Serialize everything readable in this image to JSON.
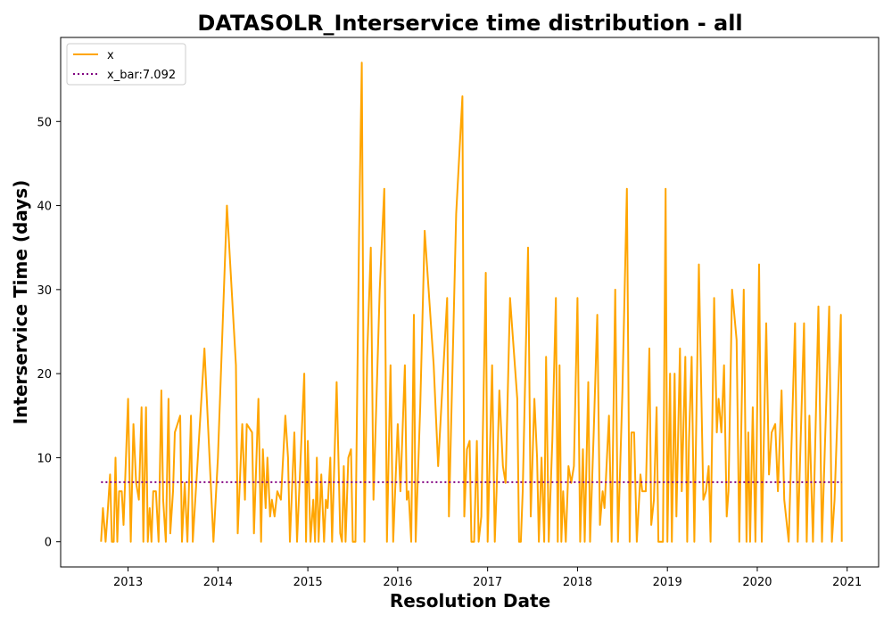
{
  "chart_data": {
    "type": "line",
    "title": "DATASOLR_Interservice time distribution - all",
    "xlabel": "Resolution Date",
    "ylabel": "Interservice Time (days)",
    "xlim": [
      2012.25,
      2021.35
    ],
    "ylim": [
      -3,
      60
    ],
    "xticks": [
      2013,
      2014,
      2015,
      2016,
      2017,
      2018,
      2019,
      2020,
      2021
    ],
    "yticks": [
      0,
      10,
      20,
      30,
      40,
      50
    ],
    "grid": false,
    "legend_position": "top-left",
    "colors": {
      "series": "#ffa500",
      "mean": "#800080"
    },
    "series": [
      {
        "name": "x",
        "style": "solid",
        "points": [
          [
            2012.7,
            0
          ],
          [
            2012.72,
            4
          ],
          [
            2012.75,
            0
          ],
          [
            2012.77,
            3
          ],
          [
            2012.8,
            8
          ],
          [
            2012.82,
            0
          ],
          [
            2012.84,
            0
          ],
          [
            2012.86,
            10
          ],
          [
            2012.88,
            0
          ],
          [
            2012.9,
            6
          ],
          [
            2012.93,
            6
          ],
          [
            2012.95,
            2
          ],
          [
            2013.0,
            17
          ],
          [
            2013.03,
            0
          ],
          [
            2013.06,
            14
          ],
          [
            2013.09,
            7
          ],
          [
            2013.12,
            5
          ],
          [
            2013.15,
            16
          ],
          [
            2013.17,
            0
          ],
          [
            2013.2,
            16
          ],
          [
            2013.22,
            0
          ],
          [
            2013.24,
            4
          ],
          [
            2013.26,
            0
          ],
          [
            2013.28,
            6
          ],
          [
            2013.31,
            6
          ],
          [
            2013.34,
            0
          ],
          [
            2013.37,
            18
          ],
          [
            2013.39,
            5
          ],
          [
            2013.42,
            0
          ],
          [
            2013.45,
            17
          ],
          [
            2013.47,
            1
          ],
          [
            2013.5,
            6
          ],
          [
            2013.52,
            13
          ],
          [
            2013.55,
            14
          ],
          [
            2013.58,
            15
          ],
          [
            2013.6,
            0
          ],
          [
            2013.63,
            7
          ],
          [
            2013.66,
            0
          ],
          [
            2013.7,
            15
          ],
          [
            2013.72,
            0
          ],
          [
            2013.85,
            23
          ],
          [
            2013.95,
            0
          ],
          [
            2014.0,
            10
          ],
          [
            2014.1,
            40
          ],
          [
            2014.2,
            21
          ],
          [
            2014.22,
            1
          ],
          [
            2014.27,
            14
          ],
          [
            2014.3,
            5
          ],
          [
            2014.32,
            14
          ],
          [
            2014.38,
            13
          ],
          [
            2014.4,
            1
          ],
          [
            2014.45,
            17
          ],
          [
            2014.48,
            0
          ],
          [
            2014.5,
            11
          ],
          [
            2014.53,
            4
          ],
          [
            2014.55,
            10
          ],
          [
            2014.58,
            3
          ],
          [
            2014.6,
            5
          ],
          [
            2014.63,
            3
          ],
          [
            2014.66,
            6
          ],
          [
            2014.7,
            5
          ],
          [
            2014.75,
            15
          ],
          [
            2014.78,
            10
          ],
          [
            2014.8,
            0
          ],
          [
            2014.85,
            13
          ],
          [
            2014.88,
            0
          ],
          [
            2014.96,
            20
          ],
          [
            2014.98,
            0
          ],
          [
            2015.0,
            12
          ],
          [
            2015.03,
            0
          ],
          [
            2015.06,
            5
          ],
          [
            2015.08,
            0
          ],
          [
            2015.1,
            10
          ],
          [
            2015.12,
            0
          ],
          [
            2015.15,
            8
          ],
          [
            2015.18,
            0
          ],
          [
            2015.2,
            5
          ],
          [
            2015.22,
            4
          ],
          [
            2015.25,
            10
          ],
          [
            2015.27,
            0
          ],
          [
            2015.32,
            19
          ],
          [
            2015.36,
            1
          ],
          [
            2015.38,
            0
          ],
          [
            2015.4,
            9
          ],
          [
            2015.42,
            0
          ],
          [
            2015.45,
            10
          ],
          [
            2015.48,
            11
          ],
          [
            2015.5,
            0
          ],
          [
            2015.53,
            0
          ],
          [
            2015.57,
            37
          ],
          [
            2015.6,
            57
          ],
          [
            2015.63,
            0
          ],
          [
            2015.66,
            22
          ],
          [
            2015.7,
            35
          ],
          [
            2015.73,
            5
          ],
          [
            2015.8,
            30
          ],
          [
            2015.85,
            42
          ],
          [
            2015.88,
            0
          ],
          [
            2015.92,
            21
          ],
          [
            2015.95,
            0
          ],
          [
            2016.0,
            14
          ],
          [
            2016.03,
            6
          ],
          [
            2016.08,
            21
          ],
          [
            2016.1,
            5
          ],
          [
            2016.12,
            6
          ],
          [
            2016.15,
            0
          ],
          [
            2016.18,
            27
          ],
          [
            2016.2,
            0
          ],
          [
            2016.25,
            16
          ],
          [
            2016.3,
            37
          ],
          [
            2016.4,
            21
          ],
          [
            2016.45,
            9
          ],
          [
            2016.55,
            29
          ],
          [
            2016.57,
            3
          ],
          [
            2016.65,
            39
          ],
          [
            2016.72,
            53
          ],
          [
            2016.74,
            3
          ],
          [
            2016.77,
            11
          ],
          [
            2016.8,
            12
          ],
          [
            2016.82,
            0
          ],
          [
            2016.85,
            0
          ],
          [
            2016.88,
            12
          ],
          [
            2016.9,
            0
          ],
          [
            2016.93,
            3
          ],
          [
            2016.98,
            32
          ],
          [
            2017.0,
            0
          ],
          [
            2017.05,
            21
          ],
          [
            2017.08,
            0
          ],
          [
            2017.1,
            6
          ],
          [
            2017.13,
            18
          ],
          [
            2017.17,
            9
          ],
          [
            2017.2,
            7
          ],
          [
            2017.25,
            29
          ],
          [
            2017.33,
            17
          ],
          [
            2017.35,
            0
          ],
          [
            2017.37,
            0
          ],
          [
            2017.39,
            6
          ],
          [
            2017.45,
            35
          ],
          [
            2017.48,
            3
          ],
          [
            2017.52,
            17
          ],
          [
            2017.55,
            10
          ],
          [
            2017.57,
            0
          ],
          [
            2017.6,
            10
          ],
          [
            2017.63,
            0
          ],
          [
            2017.65,
            22
          ],
          [
            2017.68,
            0
          ],
          [
            2017.72,
            12
          ],
          [
            2017.76,
            29
          ],
          [
            2017.78,
            0
          ],
          [
            2017.8,
            21
          ],
          [
            2017.82,
            0
          ],
          [
            2017.84,
            6
          ],
          [
            2017.87,
            0
          ],
          [
            2017.9,
            9
          ],
          [
            2017.93,
            7
          ],
          [
            2017.96,
            9
          ],
          [
            2018.0,
            29
          ],
          [
            2018.03,
            0
          ],
          [
            2018.06,
            11
          ],
          [
            2018.08,
            0
          ],
          [
            2018.12,
            19
          ],
          [
            2018.14,
            0
          ],
          [
            2018.18,
            13
          ],
          [
            2018.22,
            27
          ],
          [
            2018.25,
            2
          ],
          [
            2018.28,
            6
          ],
          [
            2018.3,
            4
          ],
          [
            2018.35,
            15
          ],
          [
            2018.38,
            0
          ],
          [
            2018.42,
            30
          ],
          [
            2018.45,
            0
          ],
          [
            2018.5,
            18
          ],
          [
            2018.55,
            42
          ],
          [
            2018.58,
            0
          ],
          [
            2018.6,
            13
          ],
          [
            2018.63,
            13
          ],
          [
            2018.66,
            0
          ],
          [
            2018.7,
            8
          ],
          [
            2018.72,
            6
          ],
          [
            2018.76,
            6
          ],
          [
            2018.8,
            23
          ],
          [
            2018.82,
            2
          ],
          [
            2018.85,
            5
          ],
          [
            2018.88,
            16
          ],
          [
            2018.9,
            0
          ],
          [
            2018.95,
            0
          ],
          [
            2018.98,
            42
          ],
          [
            2019.0,
            0
          ],
          [
            2019.03,
            20
          ],
          [
            2019.05,
            0
          ],
          [
            2019.08,
            20
          ],
          [
            2019.1,
            3
          ],
          [
            2019.14,
            23
          ],
          [
            2019.16,
            6
          ],
          [
            2019.2,
            22
          ],
          [
            2019.22,
            0
          ],
          [
            2019.24,
            12
          ],
          [
            2019.27,
            22
          ],
          [
            2019.3,
            0
          ],
          [
            2019.35,
            33
          ],
          [
            2019.4,
            5
          ],
          [
            2019.43,
            6
          ],
          [
            2019.46,
            9
          ],
          [
            2019.48,
            0
          ],
          [
            2019.52,
            29
          ],
          [
            2019.55,
            13
          ],
          [
            2019.57,
            17
          ],
          [
            2019.6,
            13
          ],
          [
            2019.63,
            21
          ],
          [
            2019.66,
            3
          ],
          [
            2019.68,
            6
          ],
          [
            2019.72,
            30
          ],
          [
            2019.77,
            24
          ],
          [
            2019.8,
            0
          ],
          [
            2019.85,
            30
          ],
          [
            2019.88,
            0
          ],
          [
            2019.9,
            13
          ],
          [
            2019.92,
            0
          ],
          [
            2019.95,
            16
          ],
          [
            2019.98,
            0
          ],
          [
            2020.02,
            33
          ],
          [
            2020.05,
            0
          ],
          [
            2020.1,
            26
          ],
          [
            2020.13,
            8
          ],
          [
            2020.16,
            13
          ],
          [
            2020.2,
            14
          ],
          [
            2020.23,
            6
          ],
          [
            2020.27,
            18
          ],
          [
            2020.3,
            5
          ],
          [
            2020.35,
            0
          ],
          [
            2020.42,
            26
          ],
          [
            2020.45,
            0
          ],
          [
            2020.52,
            26
          ],
          [
            2020.55,
            0
          ],
          [
            2020.58,
            15
          ],
          [
            2020.62,
            0
          ],
          [
            2020.68,
            28
          ],
          [
            2020.72,
            0
          ],
          [
            2020.8,
            28
          ],
          [
            2020.83,
            0
          ],
          [
            2020.86,
            5
          ],
          [
            2020.93,
            27
          ],
          [
            2020.94,
            0
          ]
        ]
      },
      {
        "name": "x_bar:7.092",
        "style": "dotted",
        "value": 7.092,
        "x": [
          2012.7,
          2020.94
        ]
      }
    ]
  }
}
